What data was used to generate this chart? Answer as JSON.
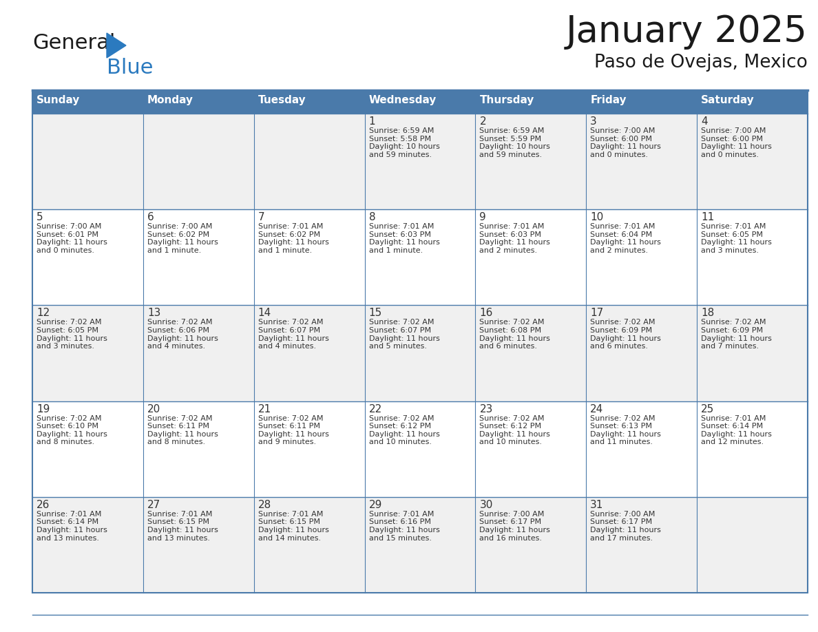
{
  "title": "January 2025",
  "subtitle": "Paso de Ovejas, Mexico",
  "days_of_week": [
    "Sunday",
    "Monday",
    "Tuesday",
    "Wednesday",
    "Thursday",
    "Friday",
    "Saturday"
  ],
  "header_bg": "#4a7aaa",
  "header_text": "#ffffff",
  "row_bg_odd": "#f0f0f0",
  "row_bg_even": "#ffffff",
  "border_color": "#4a7aaa",
  "text_color": "#333333",
  "day_num_color": "#333333",
  "logo_black": "#1a1a1a",
  "logo_blue": "#2b7abf",
  "calendar_data": [
    [
      {
        "day": "",
        "info": ""
      },
      {
        "day": "",
        "info": ""
      },
      {
        "day": "",
        "info": ""
      },
      {
        "day": "1",
        "info": "Sunrise: 6:59 AM\nSunset: 5:58 PM\nDaylight: 10 hours\nand 59 minutes."
      },
      {
        "day": "2",
        "info": "Sunrise: 6:59 AM\nSunset: 5:59 PM\nDaylight: 10 hours\nand 59 minutes."
      },
      {
        "day": "3",
        "info": "Sunrise: 7:00 AM\nSunset: 6:00 PM\nDaylight: 11 hours\nand 0 minutes."
      },
      {
        "day": "4",
        "info": "Sunrise: 7:00 AM\nSunset: 6:00 PM\nDaylight: 11 hours\nand 0 minutes."
      }
    ],
    [
      {
        "day": "5",
        "info": "Sunrise: 7:00 AM\nSunset: 6:01 PM\nDaylight: 11 hours\nand 0 minutes."
      },
      {
        "day": "6",
        "info": "Sunrise: 7:00 AM\nSunset: 6:02 PM\nDaylight: 11 hours\nand 1 minute."
      },
      {
        "day": "7",
        "info": "Sunrise: 7:01 AM\nSunset: 6:02 PM\nDaylight: 11 hours\nand 1 minute."
      },
      {
        "day": "8",
        "info": "Sunrise: 7:01 AM\nSunset: 6:03 PM\nDaylight: 11 hours\nand 1 minute."
      },
      {
        "day": "9",
        "info": "Sunrise: 7:01 AM\nSunset: 6:03 PM\nDaylight: 11 hours\nand 2 minutes."
      },
      {
        "day": "10",
        "info": "Sunrise: 7:01 AM\nSunset: 6:04 PM\nDaylight: 11 hours\nand 2 minutes."
      },
      {
        "day": "11",
        "info": "Sunrise: 7:01 AM\nSunset: 6:05 PM\nDaylight: 11 hours\nand 3 minutes."
      }
    ],
    [
      {
        "day": "12",
        "info": "Sunrise: 7:02 AM\nSunset: 6:05 PM\nDaylight: 11 hours\nand 3 minutes."
      },
      {
        "day": "13",
        "info": "Sunrise: 7:02 AM\nSunset: 6:06 PM\nDaylight: 11 hours\nand 4 minutes."
      },
      {
        "day": "14",
        "info": "Sunrise: 7:02 AM\nSunset: 6:07 PM\nDaylight: 11 hours\nand 4 minutes."
      },
      {
        "day": "15",
        "info": "Sunrise: 7:02 AM\nSunset: 6:07 PM\nDaylight: 11 hours\nand 5 minutes."
      },
      {
        "day": "16",
        "info": "Sunrise: 7:02 AM\nSunset: 6:08 PM\nDaylight: 11 hours\nand 6 minutes."
      },
      {
        "day": "17",
        "info": "Sunrise: 7:02 AM\nSunset: 6:09 PM\nDaylight: 11 hours\nand 6 minutes."
      },
      {
        "day": "18",
        "info": "Sunrise: 7:02 AM\nSunset: 6:09 PM\nDaylight: 11 hours\nand 7 minutes."
      }
    ],
    [
      {
        "day": "19",
        "info": "Sunrise: 7:02 AM\nSunset: 6:10 PM\nDaylight: 11 hours\nand 8 minutes."
      },
      {
        "day": "20",
        "info": "Sunrise: 7:02 AM\nSunset: 6:11 PM\nDaylight: 11 hours\nand 8 minutes."
      },
      {
        "day": "21",
        "info": "Sunrise: 7:02 AM\nSunset: 6:11 PM\nDaylight: 11 hours\nand 9 minutes."
      },
      {
        "day": "22",
        "info": "Sunrise: 7:02 AM\nSunset: 6:12 PM\nDaylight: 11 hours\nand 10 minutes."
      },
      {
        "day": "23",
        "info": "Sunrise: 7:02 AM\nSunset: 6:12 PM\nDaylight: 11 hours\nand 10 minutes."
      },
      {
        "day": "24",
        "info": "Sunrise: 7:02 AM\nSunset: 6:13 PM\nDaylight: 11 hours\nand 11 minutes."
      },
      {
        "day": "25",
        "info": "Sunrise: 7:01 AM\nSunset: 6:14 PM\nDaylight: 11 hours\nand 12 minutes."
      }
    ],
    [
      {
        "day": "26",
        "info": "Sunrise: 7:01 AM\nSunset: 6:14 PM\nDaylight: 11 hours\nand 13 minutes."
      },
      {
        "day": "27",
        "info": "Sunrise: 7:01 AM\nSunset: 6:15 PM\nDaylight: 11 hours\nand 13 minutes."
      },
      {
        "day": "28",
        "info": "Sunrise: 7:01 AM\nSunset: 6:15 PM\nDaylight: 11 hours\nand 14 minutes."
      },
      {
        "day": "29",
        "info": "Sunrise: 7:01 AM\nSunset: 6:16 PM\nDaylight: 11 hours\nand 15 minutes."
      },
      {
        "day": "30",
        "info": "Sunrise: 7:00 AM\nSunset: 6:17 PM\nDaylight: 11 hours\nand 16 minutes."
      },
      {
        "day": "31",
        "info": "Sunrise: 7:00 AM\nSunset: 6:17 PM\nDaylight: 11 hours\nand 17 minutes."
      },
      {
        "day": "",
        "info": ""
      }
    ]
  ]
}
